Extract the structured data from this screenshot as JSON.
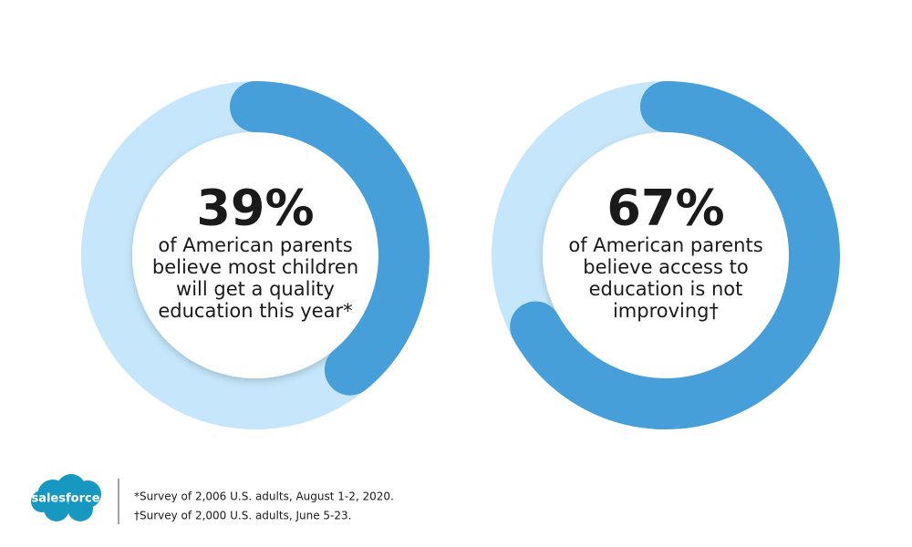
{
  "chart_data": [
    {
      "type": "donut",
      "values": [
        39
      ],
      "value_labels": [
        "39%"
      ],
      "color": "#479fda",
      "track_color": "#c5e6fb",
      "description": [
        "of American parents",
        "believe most children",
        "will get a quality",
        "education this year*"
      ]
    },
    {
      "type": "donut",
      "values": [
        67
      ],
      "value_labels": [
        "67%"
      ],
      "color": "#479fda",
      "track_color": "#c5e6fb",
      "description": [
        "of American parents",
        "believe access to",
        "education is not",
        "improving†"
      ]
    }
  ],
  "logo": "salesforce",
  "footnotes": [
    "*Survey of 2,006 U.S. adults, August 1-2, 2020.",
    "†Survey of 2,000 U.S. adults, June 5-23."
  ]
}
